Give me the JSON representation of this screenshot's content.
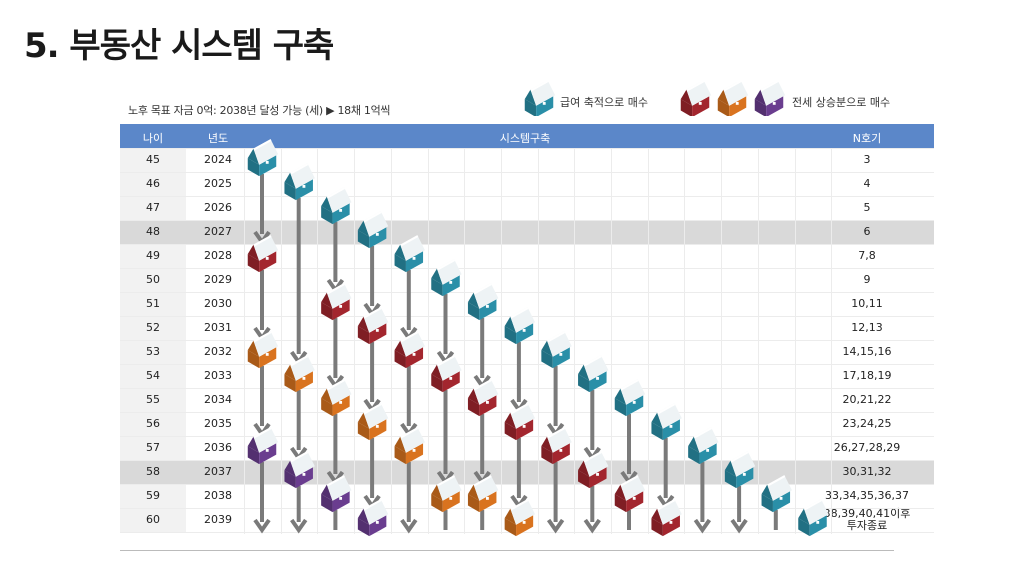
{
  "title": "5. 부동산 시스템 구축",
  "subtitle": "노후 목표 자금 0억: 2038년 달성 가능 (세) ▶ 18채 1억씩",
  "legend": {
    "left_label": "급여 축적으로 매수",
    "right_label": "전세 상승분으로 매수"
  },
  "colors": {
    "header": "#5b87c9",
    "teal": "#2a8fa8",
    "red": "#a3262e",
    "orange": "#d9731f",
    "purple": "#6a3d8f",
    "arrow": "#7a7a7a"
  },
  "table": {
    "headers": [
      "나이",
      "년도",
      "시스템구축",
      "N호기"
    ],
    "rows": [
      {
        "age": "45",
        "year": "2024",
        "n": "3"
      },
      {
        "age": "46",
        "year": "2025",
        "n": "4"
      },
      {
        "age": "47",
        "year": "2026",
        "n": "5"
      },
      {
        "age": "48",
        "year": "2027",
        "n": "6"
      },
      {
        "age": "49",
        "year": "2028",
        "n": "7,8"
      },
      {
        "age": "50",
        "year": "2029",
        "n": "9"
      },
      {
        "age": "51",
        "year": "2030",
        "n": "10,11"
      },
      {
        "age": "52",
        "year": "2031",
        "n": "12,13"
      },
      {
        "age": "53",
        "year": "2032",
        "n": "14,15,16"
      },
      {
        "age": "54",
        "year": "2033",
        "n": "17,18,19"
      },
      {
        "age": "55",
        "year": "2034",
        "n": "20,21,22"
      },
      {
        "age": "56",
        "year": "2035",
        "n": "23,24,25"
      },
      {
        "age": "57",
        "year": "2036",
        "n": "26,27,28,29"
      },
      {
        "age": "58",
        "year": "2037",
        "n": "30,31,32"
      },
      {
        "age": "59",
        "year": "2038",
        "n": "33,34,35,36,37"
      },
      {
        "age": "60",
        "year": "2039",
        "n": "38,39,40,41이후",
        "n2": "투자종료"
      }
    ],
    "highlight_rows": [
      3,
      13
    ]
  },
  "houses": [
    {
      "column": 0,
      "row": 0,
      "color": "teal"
    },
    {
      "column": 0,
      "row": 4,
      "color": "red"
    },
    {
      "column": 0,
      "row": 8,
      "color": "orange"
    },
    {
      "column": 0,
      "row": 12,
      "color": "purple"
    },
    {
      "column": 1,
      "row": 1,
      "color": "teal"
    },
    {
      "column": 1,
      "row": 9,
      "color": "orange"
    },
    {
      "column": 1,
      "row": 13,
      "color": "purple"
    },
    {
      "column": 2,
      "row": 2,
      "color": "teal"
    },
    {
      "column": 2,
      "row": 6,
      "color": "red"
    },
    {
      "column": 2,
      "row": 10,
      "color": "orange"
    },
    {
      "column": 2,
      "row": 14,
      "color": "purple"
    },
    {
      "column": 3,
      "row": 3,
      "color": "teal"
    },
    {
      "column": 3,
      "row": 7,
      "color": "red"
    },
    {
      "column": 3,
      "row": 11,
      "color": "orange"
    },
    {
      "column": 3,
      "row": 15,
      "color": "purple"
    },
    {
      "column": 4,
      "row": 4,
      "color": "teal"
    },
    {
      "column": 4,
      "row": 8,
      "color": "red"
    },
    {
      "column": 4,
      "row": 12,
      "color": "orange"
    },
    {
      "column": 5,
      "row": 5,
      "color": "teal"
    },
    {
      "column": 5,
      "row": 9,
      "color": "red"
    },
    {
      "column": 5,
      "row": 14,
      "color": "orange"
    },
    {
      "column": 6,
      "row": 6,
      "color": "teal"
    },
    {
      "column": 6,
      "row": 10,
      "color": "red"
    },
    {
      "column": 6,
      "row": 14,
      "color": "orange"
    },
    {
      "column": 7,
      "row": 7,
      "color": "teal"
    },
    {
      "column": 7,
      "row": 11,
      "color": "red"
    },
    {
      "column": 7,
      "row": 15,
      "color": "orange"
    },
    {
      "column": 8,
      "row": 8,
      "color": "teal"
    },
    {
      "column": 8,
      "row": 12,
      "color": "red"
    },
    {
      "column": 9,
      "row": 9,
      "color": "teal"
    },
    {
      "column": 9,
      "row": 13,
      "color": "red"
    },
    {
      "column": 10,
      "row": 10,
      "color": "teal"
    },
    {
      "column": 10,
      "row": 14,
      "color": "red"
    },
    {
      "column": 11,
      "row": 11,
      "color": "teal"
    },
    {
      "column": 11,
      "row": 15,
      "color": "red"
    },
    {
      "column": 12,
      "row": 12,
      "color": "teal"
    },
    {
      "column": 13,
      "row": 13,
      "color": "teal"
    },
    {
      "column": 14,
      "row": 14,
      "color": "teal"
    },
    {
      "column": 15,
      "row": 15,
      "color": "teal"
    }
  ]
}
